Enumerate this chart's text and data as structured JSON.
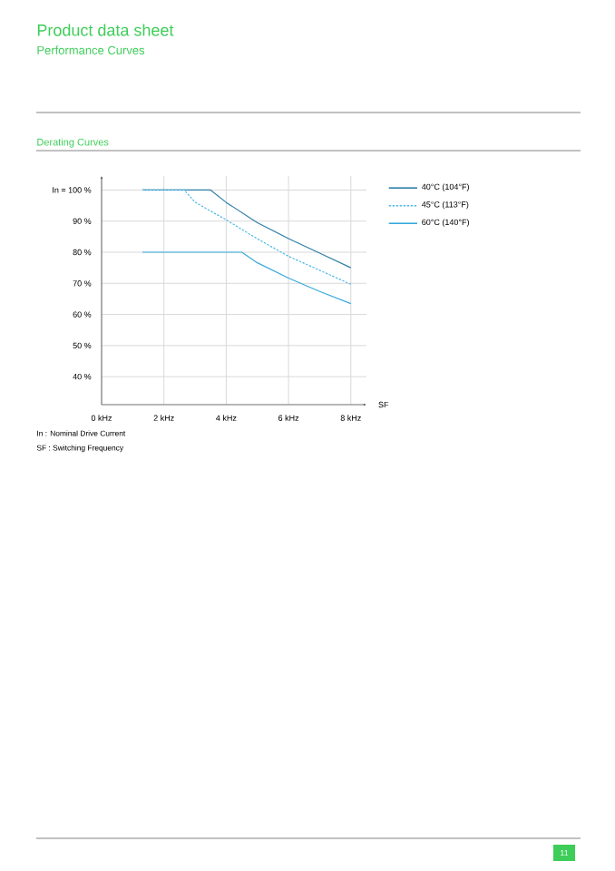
{
  "chart_data": {
    "type": "line",
    "title": "Product data sheet",
    "subtitle": "Performance Curves",
    "xlabel": "SF",
    "annotations": [
      "Derating Curves",
      "In : Nominal Drive Current",
      "SF : Switching Frequency",
      "11"
    ],
    "series": [
      {
        "name": "40°C (104°F)",
        "color": "#2f7fa6",
        "line_style": "solid",
        "x": [
          1.31,
          2,
          3,
          3.5,
          4,
          5,
          6,
          7,
          8
        ],
        "values": [
          100,
          100,
          100,
          100,
          96,
          89.5,
          84.4,
          79.7,
          75
        ]
      },
      {
        "name": "45°C (113°F)",
        "color": "#4db8e8",
        "line_style": "dashed",
        "x": [
          1.31,
          2,
          2.65,
          3,
          4,
          5,
          6,
          7,
          8
        ],
        "values": [
          100,
          100,
          100,
          96.1,
          90.4,
          84.3,
          78.7,
          74.2,
          69.7
        ]
      },
      {
        "name": "60°C (140°F)",
        "color": "#38a9dc",
        "line_style": "solid",
        "x": [
          1.31,
          2,
          3,
          4,
          4.5,
          5,
          6,
          7,
          8
        ],
        "values": [
          80,
          80,
          80,
          80,
          80,
          76.6,
          71.7,
          67.4,
          63.5
        ]
      }
    ],
    "xlim": [
      0,
      8.5
    ],
    "ylim": [
      31,
      104.5
    ],
    "xticks": [
      {
        "value": 0,
        "label": "0 kHz"
      },
      {
        "value": 2,
        "label": "2 kHz"
      },
      {
        "value": 4,
        "label": "4 kHz"
      },
      {
        "value": 6,
        "label": "6 kHz"
      },
      {
        "value": 8,
        "label": "8 kHz"
      }
    ],
    "yticks": [
      {
        "value": 40,
        "label": "40 %"
      },
      {
        "value": 50,
        "label": "50 %"
      },
      {
        "value": 60,
        "label": "60 %"
      },
      {
        "value": 70,
        "label": "70 %"
      },
      {
        "value": 80,
        "label": "80 %"
      },
      {
        "value": 90,
        "label": "90 %"
      },
      {
        "value": 100,
        "label": "In = 100 %"
      }
    ],
    "grid": true,
    "legend": "right"
  }
}
